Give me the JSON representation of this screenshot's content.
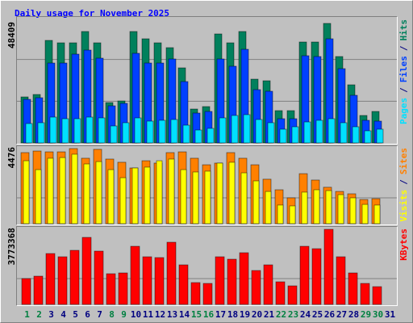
{
  "chart_data": [
    {
      "type": "bar",
      "title": "Daily usage for November 2025",
      "label_separator": "/",
      "ylim": [
        0,
        50700
      ],
      "yticks": [
        48409
      ],
      "series": [
        {
          "name": "Hits",
          "color": "#00805c",
          "values": [
            18640,
            19620,
            41530,
            40550,
            40550,
            45130,
            40550,
            16350,
            17000,
            45130,
            42180,
            40550,
            38590,
            30410,
            13730,
            14720,
            44150,
            40550,
            45130,
            25830,
            25180,
            13080,
            13080,
            40880,
            40880,
            48409,
            34990,
            23540,
            11120,
            12750,
            null
          ]
        },
        {
          "name": "Files",
          "color": "#0040ff",
          "values": [
            17660,
            18310,
            32370,
            32370,
            35970,
            37610,
            34340,
            15040,
            16020,
            36300,
            32370,
            32370,
            34010,
            24850,
            12100,
            12750,
            34010,
            31070,
            37930,
            21580,
            20930,
            9810,
            9810,
            35320,
            34990,
            42180,
            30080,
            19290,
            9160,
            8830,
            null
          ]
        },
        {
          "name": "Pages",
          "color": "#00e0ff",
          "values": [
            7850,
            8180,
            10460,
            9810,
            9810,
            10460,
            10140,
            6870,
            8180,
            10140,
            8830,
            9160,
            9480,
            7190,
            5230,
            5890,
            10140,
            11120,
            11450,
            9480,
            8180,
            5560,
            6540,
            8500,
            9160,
            9810,
            8180,
            6540,
            4910,
            5560,
            null
          ]
        }
      ]
    },
    {
      "type": "bar",
      "label_separator": "/",
      "ylim": [
        0,
        4620
      ],
      "yticks": [
        4476
      ],
      "series": [
        {
          "name": "Sites",
          "color": "#ff8000",
          "values": [
            4235,
            4330,
            4280,
            4280,
            4476,
            3900,
            4430,
            3850,
            3660,
            3320,
            3750,
            3610,
            4235,
            4280,
            3900,
            3510,
            3610,
            4235,
            3900,
            3510,
            2650,
            2020,
            1540,
            2980,
            2600,
            2170,
            1920,
            1780,
            1440,
            1490,
            null
          ]
        },
        {
          "name": "Visits",
          "color": "#ffff00",
          "values": [
            3750,
            3220,
            3900,
            3940,
            4140,
            3560,
            3700,
            3220,
            2740,
            3320,
            3370,
            3750,
            3850,
            3220,
            3080,
            3130,
            3610,
            3660,
            3030,
            2550,
            1920,
            1110,
            1060,
            1880,
            2020,
            1970,
            1730,
            1540,
            1150,
            1110,
            null
          ]
        }
      ]
    },
    {
      "type": "bar",
      "ylim": [
        0,
        3895000
      ],
      "yticks": [
        3773368
      ],
      "categories": [
        "1",
        "2",
        "3",
        "4",
        "5",
        "6",
        "7",
        "8",
        "9",
        "10",
        "11",
        "12",
        "13",
        "14",
        "15",
        "16",
        "17",
        "18",
        "19",
        "20",
        "21",
        "22",
        "23",
        "24",
        "25",
        "26",
        "27",
        "28",
        "29",
        "30",
        "31"
      ],
      "category_colors": [
        "#008040",
        "#008040",
        "#000080",
        "#000080",
        "#000080",
        "#000080",
        "#000080",
        "#008040",
        "#008040",
        "#000080",
        "#000080",
        "#000080",
        "#000080",
        "#000080",
        "#008040",
        "#008040",
        "#000080",
        "#000080",
        "#000080",
        "#000080",
        "#000080",
        "#008040",
        "#008040",
        "#000080",
        "#000080",
        "#000080",
        "#000080",
        "#000080",
        "#008040",
        "#008040",
        "#000080"
      ],
      "series": [
        {
          "name": "KBytes",
          "color": "#ff0000",
          "values": [
            1298000,
            1420000,
            2556000,
            2394000,
            2718000,
            3368000,
            2678000,
            1542000,
            1582000,
            2921000,
            2394000,
            2353000,
            3124000,
            1988000,
            1096000,
            1055000,
            2394000,
            2272000,
            2597000,
            1704000,
            1988000,
            1136000,
            933000,
            2921000,
            2800000,
            3773368,
            2394000,
            1582000,
            1055000,
            893000,
            null
          ]
        }
      ]
    }
  ]
}
